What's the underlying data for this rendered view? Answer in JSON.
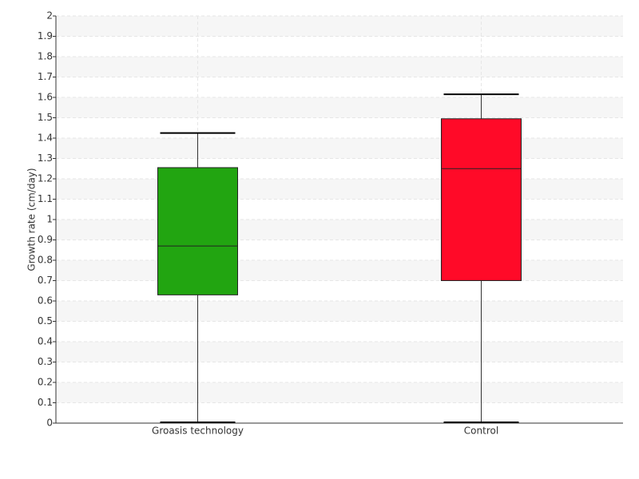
{
  "chart_data": {
    "type": "box",
    "y_label": "Growth rate (cm/day)",
    "categories": [
      "Groasis technology",
      "Control"
    ],
    "colors": [
      "#22a511",
      "#ff0a28"
    ],
    "min": [
      0,
      0
    ],
    "q1": [
      0.63,
      0.7
    ],
    "median": [
      0.87,
      1.25
    ],
    "q3": [
      1.255,
      1.495
    ],
    "max": [
      1.425,
      1.615
    ],
    "ylim": [
      0,
      2
    ],
    "yticks": [
      0,
      0.1,
      0.2,
      0.3,
      0.4,
      0.5,
      0.6,
      0.7,
      0.8,
      0.9,
      1,
      1.1,
      1.2,
      1.3,
      1.4,
      1.5,
      1.6,
      1.7,
      1.8,
      1.9,
      2
    ],
    "grid": true
  }
}
